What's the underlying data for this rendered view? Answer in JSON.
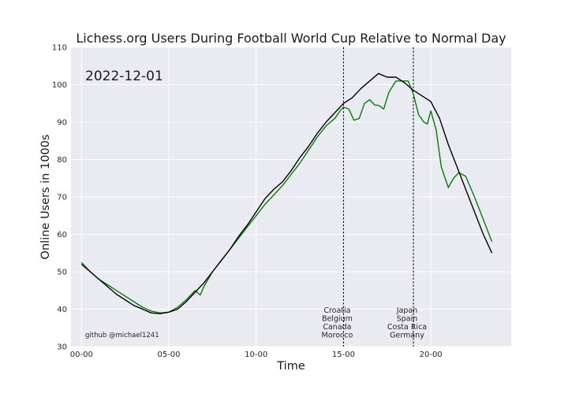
{
  "chart_data": {
    "type": "line",
    "title": "Lichess.org Users During Football World Cup Relative to Normal Day",
    "xlabel": "Time",
    "ylabel": "Online Users in 1000s",
    "date_label": "2022-12-01",
    "credit": "github @michael1241",
    "ylim": [
      30,
      110
    ],
    "xlim": [
      -0.6,
      24.6
    ],
    "yticks": [
      30,
      40,
      50,
      60,
      70,
      80,
      90,
      100,
      110
    ],
    "xticks": [
      {
        "value": 0,
        "label": "00-00"
      },
      {
        "value": 5,
        "label": "05-00"
      },
      {
        "value": 10,
        "label": "10-00"
      },
      {
        "value": 15,
        "label": "15-00"
      },
      {
        "value": 20,
        "label": "20-00"
      }
    ],
    "grid": true,
    "legend": "none",
    "vlines": [
      {
        "x": 15,
        "labels": [
          "Croatia",
          "Belgium",
          "Canada",
          "Morocco"
        ]
      },
      {
        "x": 19,
        "labels": [
          "Japan",
          "Spain",
          "Costa Rica",
          "Germany"
        ]
      }
    ],
    "series": [
      {
        "color": "#000000",
        "x": [
          0,
          0.5,
          1,
          1.5,
          2,
          2.5,
          3,
          3.5,
          4,
          4.5,
          5,
          5.5,
          6,
          6.5,
          7,
          7.5,
          8,
          8.5,
          9,
          9.5,
          10,
          10.5,
          11,
          11.5,
          12,
          12.5,
          13,
          13.5,
          14,
          14.5,
          15,
          15.5,
          16,
          16.5,
          17,
          17.5,
          18,
          18.5,
          19,
          19.5,
          20,
          20.5,
          21,
          21.5,
          22,
          22.5,
          23,
          23.5
        ],
        "values": [
          52,
          50,
          48,
          46,
          44,
          42.5,
          41,
          40,
          39,
          38.8,
          39.2,
          40,
          42,
          44.5,
          47,
          50,
          53,
          56,
          59.5,
          62.5,
          66,
          69.5,
          72,
          74,
          77,
          80.5,
          83.5,
          87,
          90,
          92.5,
          95,
          96.5,
          99,
          101,
          103,
          102,
          102,
          100.5,
          98.5,
          97,
          95.5,
          91,
          84,
          78,
          72,
          66,
          60,
          55
        ]
      },
      {
        "color": "#008000",
        "x": [
          0,
          0.5,
          1,
          1.5,
          2,
          2.5,
          3,
          3.5,
          4,
          4.5,
          5,
          5.5,
          6,
          6.5,
          6.8,
          7,
          7.5,
          8,
          8.5,
          9,
          9.5,
          10,
          10.5,
          11,
          11.5,
          12,
          12.5,
          13,
          13.5,
          14,
          14.5,
          14.8,
          15,
          15.3,
          15.6,
          15.9,
          16.2,
          16.5,
          16.8,
          17,
          17.3,
          17.6,
          18,
          18.3,
          18.7,
          19,
          19.3,
          19.6,
          19.8,
          20,
          20.3,
          20.6,
          21,
          21.3,
          21.6,
          22,
          22.5,
          23,
          23.5
        ],
        "values": [
          52.5,
          50,
          48,
          46.5,
          45,
          43.5,
          42,
          40.5,
          39.5,
          39,
          39.2,
          40.5,
          42.5,
          45,
          43.8,
          46,
          50,
          53,
          56,
          59,
          62,
          65,
          68,
          70.5,
          73,
          76,
          79,
          82.5,
          86,
          89,
          91,
          93,
          94,
          93.5,
          90.5,
          91,
          95,
          96,
          94.5,
          94.5,
          93.5,
          98,
          101,
          101,
          101,
          97.5,
          92,
          90,
          89.5,
          93,
          88,
          78,
          72.5,
          75,
          76.5,
          75.5,
          70,
          64,
          58
        ]
      }
    ]
  }
}
